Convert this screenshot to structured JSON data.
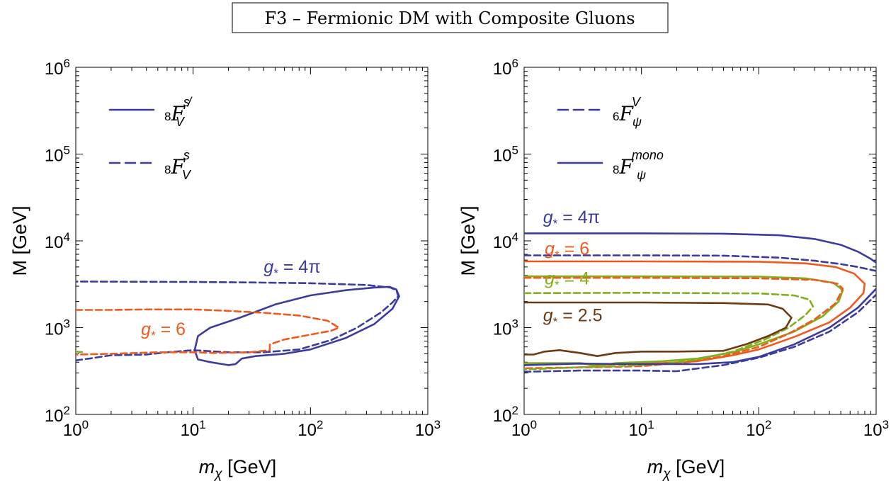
{
  "title": "F3 – Fermionic DM with Composite Gluons",
  "colors": {
    "blue": "#3c3c9c",
    "orange": "#f05a1e",
    "green": "#7fb01c",
    "brown": "#6e3a14"
  },
  "chart_data": [
    {
      "type": "line",
      "xscale": "log",
      "yscale": "log",
      "xlim": [
        1,
        1000
      ],
      "ylim": [
        100,
        1000000
      ],
      "xlabel": "m_χ [GeV]",
      "ylabel": "M [GeV]",
      "x_ticks": [
        "10^0",
        "10^1",
        "10^2",
        "10^3"
      ],
      "y_ticks": [
        "10^2",
        "10^3",
        "10^4",
        "10^5",
        "10^6"
      ],
      "legend": [
        {
          "label_sub": "8",
          "label_main": "F",
          "label_sup": "s̸",
          "label_sub2": "V",
          "style": "solid",
          "color": "#3c3c9c"
        },
        {
          "label_sub": "8",
          "label_main": "F",
          "label_sup": "s",
          "label_sub2": "V",
          "style": "dashed",
          "color": "#3c3c9c"
        }
      ],
      "annotations": [
        {
          "text": "g* = 4π",
          "sym": "g",
          "sub": "*",
          "rest": " = 4π",
          "color": "#3c3c9c",
          "x": 40,
          "y": 4300
        },
        {
          "text": "g* = 6",
          "sym": "g",
          "sub": "*",
          "rest": " = 6",
          "color": "#f05a1e",
          "x": 3.6,
          "y": 820
        }
      ],
      "series": [
        {
          "style": "dashed",
          "color": "#3c3c9c",
          "points": [
            [
              1,
              420
            ],
            [
              1.3,
              440
            ],
            [
              2,
              480
            ],
            [
              4,
              490
            ],
            [
              6,
              520
            ],
            [
              10,
              550
            ],
            [
              20,
              520
            ],
            [
              40,
              520
            ],
            [
              80,
              560
            ],
            [
              150,
              720
            ],
            [
              250,
              1000
            ],
            [
              400,
              1500
            ],
            [
              500,
              1950
            ],
            [
              560,
              2300
            ],
            [
              540,
              2700
            ],
            [
              480,
              2900
            ],
            [
              300,
              3100
            ],
            [
              100,
              3250
            ],
            [
              30,
              3320
            ],
            [
              10,
              3360
            ],
            [
              1,
              3400
            ]
          ]
        },
        {
          "style": "solid",
          "color": "#3c3c9c",
          "points": [
            [
              10.3,
              550
            ],
            [
              11,
              430
            ],
            [
              14,
              400
            ],
            [
              20,
              370
            ],
            [
              23,
              380
            ],
            [
              26,
              440
            ],
            [
              34,
              470
            ],
            [
              60,
              500
            ],
            [
              100,
              560
            ],
            [
              200,
              760
            ],
            [
              350,
              1100
            ],
            [
              500,
              1650
            ],
            [
              570,
              2300
            ],
            [
              540,
              2750
            ],
            [
              470,
              2950
            ],
            [
              350,
              2900
            ],
            [
              200,
              2700
            ],
            [
              100,
              2350
            ],
            [
              50,
              1850
            ],
            [
              25,
              1300
            ],
            [
              14,
              1000
            ],
            [
              11,
              800
            ],
            [
              10.3,
              550
            ]
          ]
        },
        {
          "style": "dashed",
          "color": "#f05a1e",
          "points": [
            [
              1,
              1600
            ],
            [
              2,
              1600
            ],
            [
              4,
              1620
            ],
            [
              10,
              1620
            ],
            [
              20,
              1560
            ],
            [
              40,
              1480
            ],
            [
              80,
              1380
            ],
            [
              140,
              1200
            ],
            [
              175,
              1000
            ],
            [
              150,
              920
            ],
            [
              100,
              830
            ],
            [
              60,
              730
            ],
            [
              45,
              640
            ],
            [
              45,
              550
            ],
            [
              30,
              520
            ],
            [
              15,
              510
            ],
            [
              10,
              520
            ],
            [
              5,
              520
            ],
            [
              2,
              500
            ],
            [
              1,
              490
            ]
          ]
        },
        {
          "style": "dashed",
          "color": "#7fb01c",
          "points": [
            [
              1,
              530
            ],
            [
              1.2,
              520
            ]
          ]
        }
      ]
    },
    {
      "type": "line",
      "xscale": "log",
      "yscale": "log",
      "xlim": [
        1,
        1000
      ],
      "ylim": [
        100,
        1000000
      ],
      "xlabel": "m_χ [GeV]",
      "ylabel": "M [GeV]",
      "x_ticks": [
        "10^0",
        "10^1",
        "10^2",
        "10^3"
      ],
      "y_ticks": [
        "10^2",
        "10^3",
        "10^4",
        "10^5",
        "10^6"
      ],
      "legend": [
        {
          "label_sub": "6",
          "label_main": "F",
          "label_sup": "V",
          "label_sub2": "ψ",
          "style": "dashed",
          "color": "#3c3c9c"
        },
        {
          "label_sub": "8",
          "label_main": "F",
          "label_sup": "mono",
          "label_sub2": "ψ",
          "style": "solid",
          "color": "#3c3c9c"
        }
      ],
      "annotations": [
        {
          "text": "g* = 4π",
          "sym": "g",
          "sub": "*",
          "rest": " = 4π",
          "color": "#3c3c9c",
          "x": 1.45,
          "y": 16000
        },
        {
          "text": "g* = 6",
          "sym": "g",
          "sub": "*",
          "rest": " = 6",
          "color": "#f05a1e",
          "x": 1.5,
          "y": 6900
        },
        {
          "text": "g* = 4",
          "sym": "g",
          "sub": "*",
          "rest": " = 4",
          "color": "#7fb01c",
          "x": 1.5,
          "y": 3150
        },
        {
          "text": "g* = 2.5",
          "sym": "g",
          "sub": "*",
          "rest": " = 2.5",
          "color": "#6e3a14",
          "x": 1.45,
          "y": 1180
        }
      ],
      "series": [
        {
          "style": "solid",
          "color": "#3c3c9c",
          "points": [
            [
              1,
              12200
            ],
            [
              10,
              12200
            ],
            [
              50,
              12100
            ],
            [
              150,
              11600
            ],
            [
              300,
              10500
            ],
            [
              500,
              9000
            ],
            [
              700,
              7500
            ],
            [
              900,
              6200
            ],
            [
              1000,
              5600
            ]
          ]
        },
        {
          "style": "dashed",
          "color": "#3c3c9c",
          "points": [
            [
              1,
              6800
            ],
            [
              10,
              6800
            ],
            [
              50,
              6750
            ],
            [
              150,
              6400
            ],
            [
              300,
              5900
            ],
            [
              500,
              5400
            ],
            [
              700,
              5000
            ],
            [
              1000,
              4500
            ]
          ]
        },
        {
          "style": "solid",
          "color": "#f05a1e",
          "points": [
            [
              1,
              5800
            ],
            [
              10,
              5800
            ],
            [
              100,
              5750
            ],
            [
              250,
              5500
            ],
            [
              450,
              5000
            ],
            [
              650,
              4200
            ],
            [
              800,
              3200
            ],
            [
              780,
              2500
            ],
            [
              600,
              1700
            ],
            [
              400,
              1150
            ],
            [
              200,
              780
            ],
            [
              100,
              560
            ],
            [
              60,
              480
            ],
            [
              30,
              410
            ],
            [
              15,
              390
            ],
            [
              6,
              380
            ],
            [
              4.5,
              370
            ],
            [
              3,
              390
            ],
            [
              1,
              370
            ]
          ]
        },
        {
          "style": "solid",
          "color": "#7fb01c",
          "points": [
            [
              1,
              3900
            ],
            [
              10,
              3900
            ],
            [
              100,
              3870
            ],
            [
              250,
              3700
            ],
            [
              430,
              3300
            ],
            [
              520,
              2700
            ],
            [
              480,
              2000
            ],
            [
              350,
              1350
            ],
            [
              200,
              900
            ],
            [
              100,
              640
            ],
            [
              60,
              520
            ],
            [
              30,
              440
            ],
            [
              15,
              410
            ],
            [
              6,
              390
            ],
            [
              4.2,
              360
            ],
            [
              3,
              390
            ],
            [
              1,
              390
            ]
          ]
        },
        {
          "style": "dashed",
          "color": "#f05a1e",
          "points": [
            [
              1,
              3750
            ],
            [
              10,
              3750
            ],
            [
              100,
              3700
            ],
            [
              300,
              3550
            ],
            [
              470,
              3200
            ],
            [
              520,
              2800
            ],
            [
              450,
              1900
            ],
            [
              300,
              1250
            ],
            [
              180,
              850
            ],
            [
              100,
              600
            ],
            [
              50,
              470
            ],
            [
              25,
              400
            ],
            [
              10,
              360
            ],
            [
              4,
              350
            ],
            [
              1,
              340
            ]
          ]
        },
        {
          "style": "dashed",
          "color": "#7fb01c",
          "points": [
            [
              1,
              2500
            ],
            [
              10,
              2520
            ],
            [
              100,
              2480
            ],
            [
              200,
              2350
            ],
            [
              270,
              2100
            ],
            [
              290,
              1750
            ],
            [
              250,
              1400
            ],
            [
              180,
              1000
            ],
            [
              110,
              720
            ],
            [
              60,
              530
            ],
            [
              30,
              430
            ],
            [
              15,
              380
            ],
            [
              6,
              360
            ],
            [
              3,
              350
            ],
            [
              1,
              330
            ]
          ]
        },
        {
          "style": "dashed",
          "color": "#3c3c9c",
          "points": [
            [
              1,
              310
            ],
            [
              3,
              320
            ],
            [
              10,
              320
            ],
            [
              20,
              315
            ],
            [
              50,
              370
            ],
            [
              100,
              450
            ],
            [
              200,
              600
            ],
            [
              400,
              900
            ],
            [
              700,
              1500
            ],
            [
              1000,
              2400
            ]
          ]
        },
        {
          "style": "solid",
          "color": "#3c3c9c",
          "points": [
            [
              1,
              370
            ],
            [
              3,
              385
            ],
            [
              10,
              380
            ],
            [
              30,
              380
            ],
            [
              60,
              400
            ],
            [
              100,
              460
            ],
            [
              200,
              640
            ],
            [
              400,
              1000
            ],
            [
              700,
              1700
            ],
            [
              1000,
              2800
            ]
          ]
        },
        {
          "style": "solid",
          "color": "#6e3a14",
          "points": [
            [
              1,
              1950
            ],
            [
              10,
              1950
            ],
            [
              50,
              1920
            ],
            [
              120,
              1850
            ],
            [
              160,
              1650
            ],
            [
              190,
              1300
            ],
            [
              170,
              1000
            ],
            [
              120,
              800
            ],
            [
              80,
              650
            ],
            [
              50,
              540
            ],
            [
              20,
              530
            ],
            [
              10,
              530
            ],
            [
              6,
              510
            ],
            [
              4.2,
              470
            ],
            [
              3,
              510
            ],
            [
              2,
              550
            ],
            [
              1.5,
              530
            ],
            [
              1.2,
              490
            ],
            [
              1,
              490
            ]
          ]
        }
      ]
    }
  ]
}
